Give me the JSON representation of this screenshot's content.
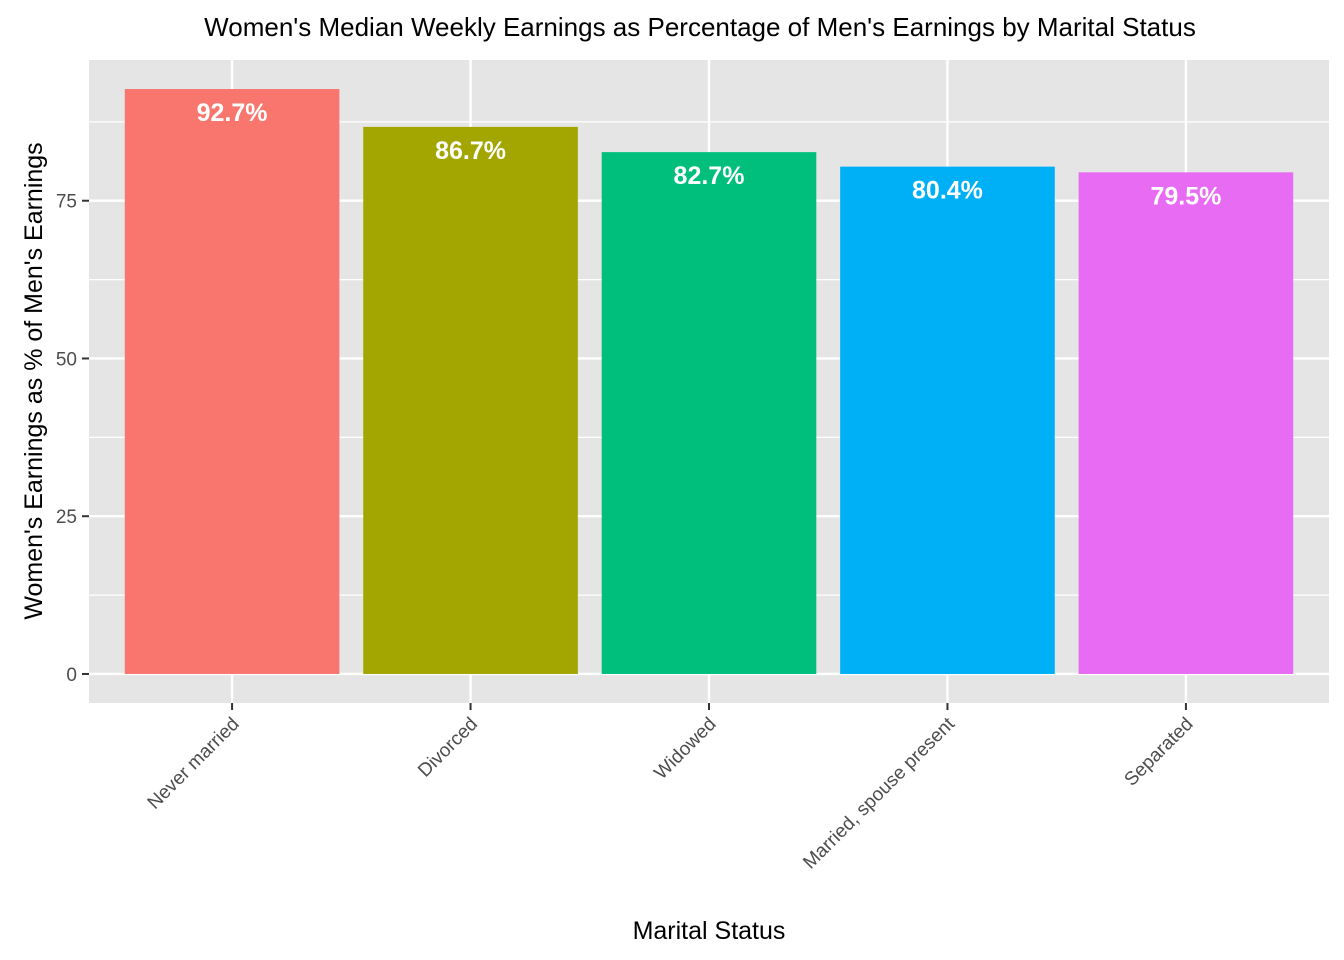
{
  "chart_data": {
    "type": "bar",
    "title": "Women's Median Weekly Earnings as Percentage of Men's Earnings by Marital Status",
    "xlabel": "Marital Status",
    "ylabel": "Women's Earnings as % of Men's Earnings",
    "categories": [
      "Never married",
      "Divorced",
      "Widowed",
      "Married, spouse present",
      "Separated"
    ],
    "values": [
      92.7,
      86.7,
      82.7,
      80.4,
      79.5
    ],
    "data_labels": [
      "92.7%",
      "86.7%",
      "82.7%",
      "80.4%",
      "79.5%"
    ],
    "colors": [
      "#F8766D",
      "#A3A500",
      "#00BF7D",
      "#00B0F6",
      "#E76BF3"
    ],
    "y_ticks": [
      0,
      25,
      50,
      75
    ],
    "y_tick_labels": [
      "0",
      "25",
      "50",
      "75"
    ],
    "ylim": [
      -4.6,
      97.3
    ],
    "grid": true,
    "legend": "none",
    "panel_background": "#E5E5E5"
  }
}
